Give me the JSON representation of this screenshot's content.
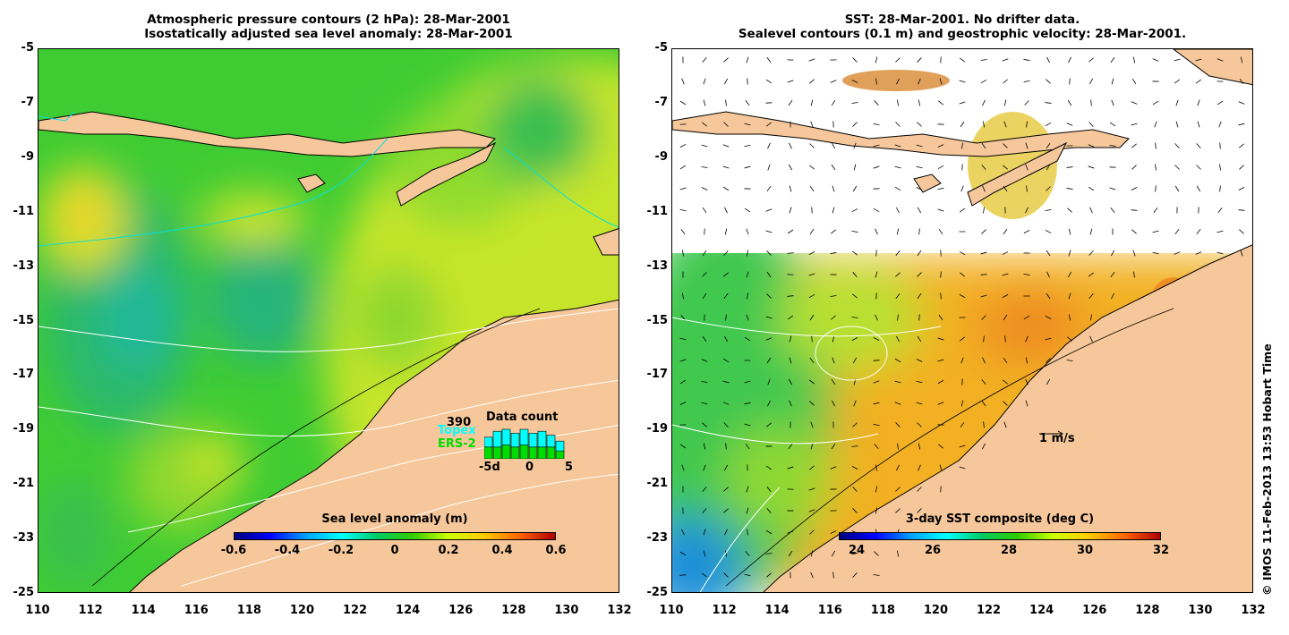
{
  "left_panel": {
    "title_line1": "Atmospheric pressure contours (2 hPa): 28-Mar-2001",
    "title_line2": "Isostatically adjusted sea level anomaly: 28-Mar-2001",
    "colorbar": {
      "title": "Sea level anomaly (m)",
      "ticks": [
        "-0.6",
        "-0.4",
        "-0.2",
        "0",
        "0.2",
        "0.4",
        "0.6"
      ]
    },
    "data_count": {
      "title": "Data count",
      "count": "390",
      "series": [
        {
          "name": "Topex",
          "color": "#00ffff"
        },
        {
          "name": "ERS-2",
          "color": "#00dd00"
        }
      ],
      "axis_labels": [
        "-5d",
        "0",
        "5"
      ],
      "topex_values": [
        5,
        8,
        8,
        7,
        8,
        7,
        8,
        6,
        5
      ],
      "ers_values": [
        6,
        6,
        7,
        6,
        7,
        6,
        6,
        6,
        4
      ]
    }
  },
  "right_panel": {
    "title_line1": "SST: 28-Mar-2001. No drifter data.",
    "title_line2": "Sealevel contours (0.1 m) and geostrophic velocity: 28-Mar-2001.",
    "colorbar": {
      "title": "3-day SST composite (deg C)",
      "ticks": [
        "24",
        "26",
        "28",
        "30",
        "32"
      ]
    },
    "velocity_scale_label": "1 m/s"
  },
  "axes": {
    "y_ticks": [
      "-5",
      "-7",
      "-9",
      "-11",
      "-13",
      "-15",
      "-17",
      "-19",
      "-21",
      "-23",
      "-25"
    ],
    "x_ticks": [
      "110",
      "112",
      "114",
      "116",
      "118",
      "120",
      "122",
      "124",
      "126",
      "128",
      "130",
      "132"
    ]
  },
  "credit": "© IMOS 11-Feb-2013 13:53 Hobart Time",
  "colors": {
    "land": "#f6c79a",
    "sla_mid": "#33cc33",
    "sst_warm": "#f0a020"
  }
}
